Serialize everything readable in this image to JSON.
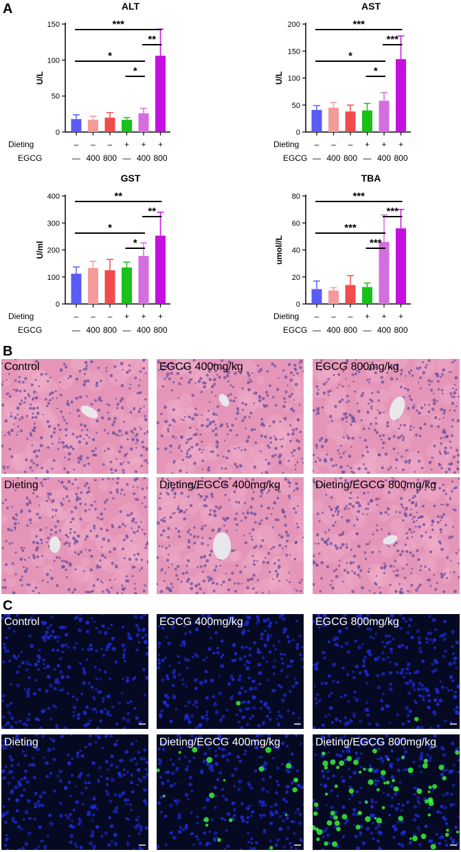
{
  "panels": {
    "a": "A",
    "b": "B",
    "c": "C"
  },
  "row_labels": {
    "dieting": "Dieting",
    "egcg": "EGCG"
  },
  "groups": [
    {
      "dieting": "–",
      "egcg": "—",
      "color": "#5b5bf5"
    },
    {
      "dieting": "–",
      "egcg": "400",
      "color": "#f49a9a"
    },
    {
      "dieting": "–",
      "egcg": "800",
      "color": "#f14b4b"
    },
    {
      "dieting": "+",
      "egcg": "—",
      "color": "#19c119"
    },
    {
      "dieting": "+",
      "egcg": "400",
      "color": "#d46ee0"
    },
    {
      "dieting": "+",
      "egcg": "800",
      "color": "#c50fe0"
    }
  ],
  "chart_data": [
    {
      "type": "bar",
      "title": "ALT",
      "ylabel": "U/L",
      "ylim": [
        0,
        150
      ],
      "yticks": [
        0,
        50,
        100,
        150
      ],
      "values": [
        18,
        17,
        20,
        17,
        26,
        106
      ],
      "errors": [
        6,
        5,
        7,
        3,
        7,
        37
      ],
      "sig": [
        {
          "from": 0,
          "to": 5,
          "label": "***"
        },
        {
          "from": 4,
          "to": 5,
          "label": "**"
        },
        {
          "from": 0,
          "to": 4,
          "label": "*"
        },
        {
          "from": 3,
          "to": 4,
          "label": "*"
        }
      ]
    },
    {
      "type": "bar",
      "title": "AST",
      "ylabel": "U/L",
      "ylim": [
        0,
        200
      ],
      "yticks": [
        0,
        50,
        100,
        150,
        200
      ],
      "values": [
        41,
        45,
        38,
        40,
        58,
        135
      ],
      "errors": [
        8,
        10,
        12,
        13,
        15,
        43
      ],
      "sig": [
        {
          "from": 0,
          "to": 5,
          "label": "***"
        },
        {
          "from": 4,
          "to": 5,
          "label": "***"
        },
        {
          "from": 0,
          "to": 4,
          "label": "*"
        },
        {
          "from": 3,
          "to": 4,
          "label": "*"
        }
      ]
    },
    {
      "type": "bar",
      "title": "GST",
      "ylabel": "U/ml",
      "ylim": [
        0,
        400
      ],
      "yticks": [
        0,
        100,
        200,
        300,
        400
      ],
      "values": [
        112,
        133,
        125,
        135,
        178,
        253
      ],
      "errors": [
        25,
        25,
        40,
        20,
        48,
        87
      ],
      "sig": [
        {
          "from": 0,
          "to": 5,
          "label": "**"
        },
        {
          "from": 4,
          "to": 5,
          "label": "**"
        },
        {
          "from": 0,
          "to": 4,
          "label": "*"
        },
        {
          "from": 3,
          "to": 4,
          "label": "*"
        }
      ]
    },
    {
      "type": "bar",
      "title": "TBA",
      "ylabel": "umol//L",
      "ylim": [
        0,
        80
      ],
      "yticks": [
        0,
        20,
        40,
        60,
        80
      ],
      "values": [
        11,
        10,
        14,
        12.5,
        46,
        56
      ],
      "errors": [
        6,
        2,
        7,
        3,
        20,
        14
      ],
      "sig": [
        {
          "from": 0,
          "to": 5,
          "label": "***"
        },
        {
          "from": 4,
          "to": 5,
          "label": "***"
        },
        {
          "from": 0,
          "to": 4,
          "label": "***"
        },
        {
          "from": 3,
          "to": 4,
          "label": "***"
        }
      ]
    }
  ],
  "he_images": [
    "Control",
    "EGCG 400mg/kg",
    "EGCG 800mg/kg",
    "Dieting",
    "Dieting/EGCG 400mg/kg",
    "Dieting/EGCG 800mg/kg"
  ],
  "fluor_images": [
    "Control",
    "EGCG 400mg/kg",
    "EGCG 800mg/kg",
    "Dieting",
    "Dieting/EGCG 400mg/kg",
    "Dieting/EGCG 800mg/kg"
  ],
  "fluor_green_level": [
    0.0,
    0.02,
    0.02,
    0.0,
    0.25,
    1.0
  ],
  "colors": {
    "he_bg": "#e596b8",
    "he_nucleus": "#6b4fa0",
    "fl_bg": "#050a22",
    "fl_nucleus": "#1d2bd8",
    "fl_green": "#39ff3c"
  }
}
